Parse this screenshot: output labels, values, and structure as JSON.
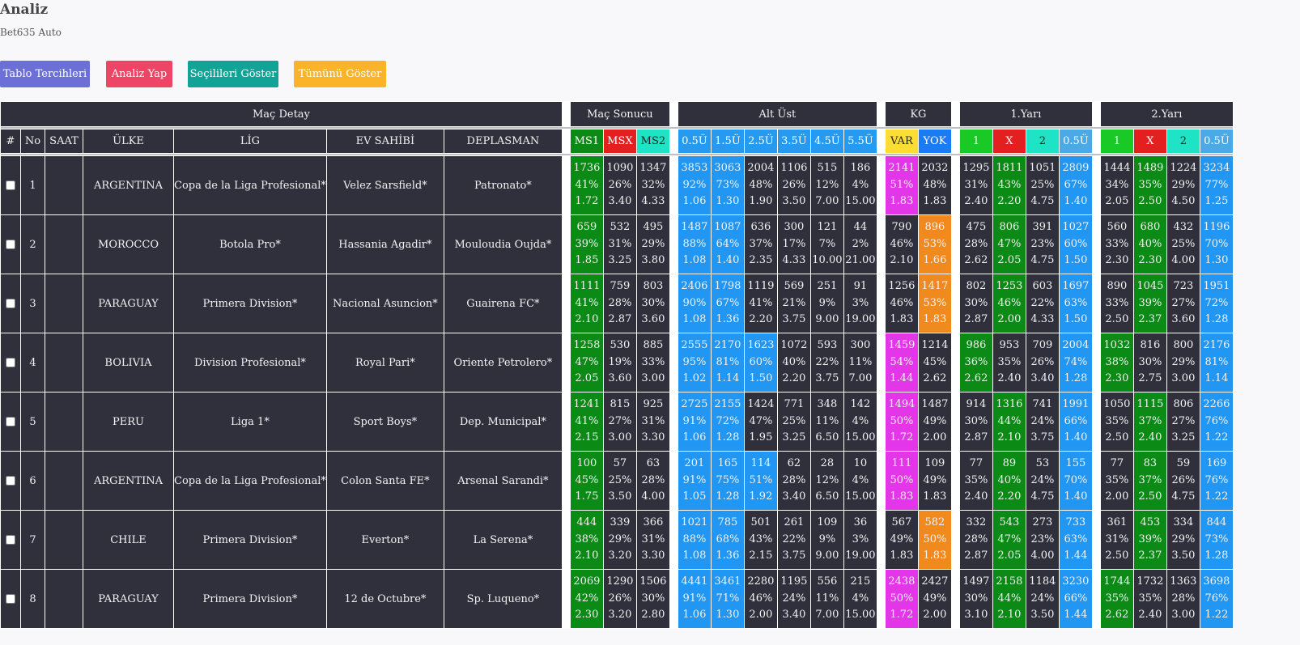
{
  "page": {
    "title": "Analiz",
    "subtitle": "Bet635 Auto"
  },
  "buttons": [
    {
      "label": "Tablo Tercihleri",
      "color": "#6c6fd6"
    },
    {
      "label": "Analiz Yap",
      "color": "#ee4466"
    },
    {
      "label": "Seçilileri Göster",
      "color": "#10a396"
    },
    {
      "label": "Tümünü Göster",
      "color": "#fbb42a"
    }
  ],
  "groups": {
    "detail": "Maç Detay",
    "result": "Maç Sonucu",
    "ou": "Alt Üst",
    "kg": "KG",
    "h1": "1.Yarı",
    "h2": "2.Yarı"
  },
  "detail_headers": [
    "#",
    "No",
    "SAAT",
    "ÜLKE",
    "LİG",
    "EV SAHİBİ",
    "DEPLASMAN"
  ],
  "stat_headers": {
    "result": [
      "MS1",
      "MSX",
      "MS2"
    ],
    "ou": [
      "0.5Ü",
      "1.5Ü",
      "2.5Ü",
      "3.5Ü",
      "4.5Ü",
      "5.5Ü"
    ],
    "kg": [
      "VAR",
      "YOK"
    ],
    "h1": [
      "1",
      "X",
      "2",
      "0.5Ü"
    ],
    "h2": [
      "1",
      "X",
      "2",
      "0.5Ü"
    ]
  },
  "colors": {
    "result": [
      "#0b8a16",
      "#e41f1f",
      "#1ee3c4"
    ],
    "ou": [
      "#259af0",
      "#259af0",
      "#259af0",
      "#259af0",
      "#259af0",
      "#259af0"
    ],
    "kg": [
      "#fbdd36",
      "#1a7cf5"
    ],
    "h1": [
      "#19c926",
      "#e41f1f",
      "#1ee3c4",
      "#4aaae8"
    ],
    "h2": [
      "#19c926",
      "#e41f1f",
      "#1ee3c4",
      "#4aaae8"
    ],
    "win": "#0b8a16",
    "ou_fill": "#2196f3",
    "kg_var": "#e236e8",
    "kg_yok": "#f0891e",
    "dark": "#30303d"
  },
  "rows": [
    {
      "no": "1",
      "time": "",
      "country": "ARGENTINA",
      "league": "Copa de la Liga Profesional*",
      "home": "Velez Sarsfield*",
      "away": "Patronato*",
      "result": [
        [
          "1736",
          "41%",
          "1.72"
        ],
        [
          "1090",
          "26%",
          "3.40"
        ],
        [
          "1347",
          "32%",
          "4.33"
        ]
      ],
      "ou": [
        [
          "3853",
          "92%",
          "1.06"
        ],
        [
          "3063",
          "73%",
          "1.30"
        ],
        [
          "2004",
          "48%",
          "1.90"
        ],
        [
          "1106",
          "26%",
          "3.50"
        ],
        [
          "515",
          "12%",
          "7.00"
        ],
        [
          "186",
          "4%",
          "15.00"
        ]
      ],
      "kg": [
        [
          "2141",
          "51%",
          "1.83"
        ],
        [
          "2032",
          "48%",
          "1.83"
        ]
      ],
      "h1": [
        [
          "1295",
          "31%",
          "2.40"
        ],
        [
          "1811",
          "43%",
          "2.20"
        ],
        [
          "1051",
          "25%",
          "4.75"
        ],
        [
          "2809",
          "67%",
          "1.40"
        ]
      ],
      "h2": [
        [
          "1444",
          "34%",
          "2.05"
        ],
        [
          "1489",
          "35%",
          "2.50"
        ],
        [
          "1224",
          "29%",
          "4.50"
        ],
        [
          "3234",
          "77%",
          "1.25"
        ]
      ],
      "hl": {
        "result": [
          0
        ],
        "ou": [
          0,
          1
        ],
        "kg": [
          0
        ],
        "h1": [
          1,
          3
        ],
        "h2": [
          1,
          3
        ]
      }
    },
    {
      "no": "2",
      "time": "",
      "country": "MOROCCO",
      "league": "Botola Pro*",
      "home": "Hassania Agadir*",
      "away": "Mouloudia Oujda*",
      "result": [
        [
          "659",
          "39%",
          "1.85"
        ],
        [
          "532",
          "31%",
          "3.25"
        ],
        [
          "495",
          "29%",
          "3.80"
        ]
      ],
      "ou": [
        [
          "1487",
          "88%",
          "1.08"
        ],
        [
          "1087",
          "64%",
          "1.40"
        ],
        [
          "636",
          "37%",
          "2.35"
        ],
        [
          "300",
          "17%",
          "4.33"
        ],
        [
          "121",
          "7%",
          "10.00"
        ],
        [
          "44",
          "2%",
          "21.00"
        ]
      ],
      "kg": [
        [
          "790",
          "46%",
          "2.10"
        ],
        [
          "896",
          "53%",
          "1.66"
        ]
      ],
      "h1": [
        [
          "475",
          "28%",
          "2.62"
        ],
        [
          "806",
          "47%",
          "2.05"
        ],
        [
          "391",
          "23%",
          "4.75"
        ],
        [
          "1027",
          "60%",
          "1.50"
        ]
      ],
      "h2": [
        [
          "560",
          "33%",
          "2.30"
        ],
        [
          "680",
          "40%",
          "2.30"
        ],
        [
          "432",
          "25%",
          "4.00"
        ],
        [
          "1196",
          "70%",
          "1.30"
        ]
      ],
      "hl": {
        "result": [
          0
        ],
        "ou": [
          0,
          1
        ],
        "kg": [
          1
        ],
        "h1": [
          1,
          3
        ],
        "h2": [
          1,
          3
        ]
      }
    },
    {
      "no": "3",
      "time": "",
      "country": "PARAGUAY",
      "league": "Primera Division*",
      "home": "Nacional Asuncion*",
      "away": "Guairena FC*",
      "result": [
        [
          "1111",
          "41%",
          "2.10"
        ],
        [
          "759",
          "28%",
          "2.87"
        ],
        [
          "803",
          "30%",
          "3.60"
        ]
      ],
      "ou": [
        [
          "2406",
          "90%",
          "1.08"
        ],
        [
          "1798",
          "67%",
          "1.36"
        ],
        [
          "1119",
          "41%",
          "2.20"
        ],
        [
          "569",
          "21%",
          "3.75"
        ],
        [
          "251",
          "9%",
          "9.00"
        ],
        [
          "91",
          "3%",
          "19.00"
        ]
      ],
      "kg": [
        [
          "1256",
          "46%",
          "1.83"
        ],
        [
          "1417",
          "53%",
          "1.83"
        ]
      ],
      "h1": [
        [
          "802",
          "30%",
          "2.87"
        ],
        [
          "1253",
          "46%",
          "2.00"
        ],
        [
          "603",
          "22%",
          "4.33"
        ],
        [
          "1697",
          "63%",
          "1.50"
        ]
      ],
      "h2": [
        [
          "890",
          "33%",
          "2.50"
        ],
        [
          "1045",
          "39%",
          "2.37"
        ],
        [
          "723",
          "27%",
          "3.60"
        ],
        [
          "1951",
          "72%",
          "1.28"
        ]
      ],
      "hl": {
        "result": [
          0
        ],
        "ou": [
          0,
          1
        ],
        "kg": [
          1
        ],
        "h1": [
          1,
          3
        ],
        "h2": [
          1,
          3
        ]
      }
    },
    {
      "no": "4",
      "time": "",
      "country": "BOLIVIA",
      "league": "Division Profesional*",
      "home": "Royal Pari*",
      "away": "Oriente Petrolero*",
      "result": [
        [
          "1258",
          "47%",
          "2.05"
        ],
        [
          "530",
          "19%",
          "3.60"
        ],
        [
          "885",
          "33%",
          "3.00"
        ]
      ],
      "ou": [
        [
          "2555",
          "95%",
          "1.02"
        ],
        [
          "2170",
          "81%",
          "1.14"
        ],
        [
          "1623",
          "60%",
          "1.50"
        ],
        [
          "1072",
          "40%",
          "2.20"
        ],
        [
          "593",
          "22%",
          "3.75"
        ],
        [
          "300",
          "11%",
          "7.00"
        ]
      ],
      "kg": [
        [
          "1459",
          "54%",
          "1.44"
        ],
        [
          "1214",
          "45%",
          "2.62"
        ]
      ],
      "h1": [
        [
          "986",
          "36%",
          "2.62"
        ],
        [
          "953",
          "35%",
          "2.40"
        ],
        [
          "709",
          "26%",
          "3.40"
        ],
        [
          "2004",
          "74%",
          "1.28"
        ]
      ],
      "h2": [
        [
          "1032",
          "38%",
          "2.30"
        ],
        [
          "816",
          "30%",
          "2.75"
        ],
        [
          "800",
          "29%",
          "3.00"
        ],
        [
          "2176",
          "81%",
          "1.14"
        ]
      ],
      "hl": {
        "result": [
          0
        ],
        "ou": [
          0,
          1,
          2
        ],
        "kg": [
          0
        ],
        "h1": [
          0,
          3
        ],
        "h2": [
          0,
          3
        ]
      }
    },
    {
      "no": "5",
      "time": "",
      "country": "PERU",
      "league": "Liga 1*",
      "home": "Sport Boys*",
      "away": "Dep. Municipal*",
      "result": [
        [
          "1241",
          "41%",
          "2.15"
        ],
        [
          "815",
          "27%",
          "3.00"
        ],
        [
          "925",
          "31%",
          "3.30"
        ]
      ],
      "ou": [
        [
          "2725",
          "91%",
          "1.06"
        ],
        [
          "2155",
          "72%",
          "1.28"
        ],
        [
          "1424",
          "47%",
          "1.95"
        ],
        [
          "771",
          "25%",
          "3.25"
        ],
        [
          "348",
          "11%",
          "6.50"
        ],
        [
          "142",
          "4%",
          "15.00"
        ]
      ],
      "kg": [
        [
          "1494",
          "50%",
          "1.72"
        ],
        [
          "1487",
          "49%",
          "2.00"
        ]
      ],
      "h1": [
        [
          "914",
          "30%",
          "2.87"
        ],
        [
          "1316",
          "44%",
          "2.10"
        ],
        [
          "741",
          "24%",
          "3.75"
        ],
        [
          "1991",
          "66%",
          "1.40"
        ]
      ],
      "h2": [
        [
          "1050",
          "35%",
          "2.50"
        ],
        [
          "1115",
          "37%",
          "2.40"
        ],
        [
          "806",
          "27%",
          "3.25"
        ],
        [
          "2266",
          "76%",
          "1.22"
        ]
      ],
      "hl": {
        "result": [
          0
        ],
        "ou": [
          0,
          1
        ],
        "kg": [
          0
        ],
        "h1": [
          1,
          3
        ],
        "h2": [
          1,
          3
        ]
      }
    },
    {
      "no": "6",
      "time": "",
      "country": "ARGENTINA",
      "league": "Copa de la Liga Profesional*",
      "home": "Colon Santa FE*",
      "away": "Arsenal Sarandi*",
      "result": [
        [
          "100",
          "45%",
          "1.75"
        ],
        [
          "57",
          "25%",
          "3.50"
        ],
        [
          "63",
          "28%",
          "4.00"
        ]
      ],
      "ou": [
        [
          "201",
          "91%",
          "1.05"
        ],
        [
          "165",
          "75%",
          "1.28"
        ],
        [
          "114",
          "51%",
          "1.92"
        ],
        [
          "62",
          "28%",
          "3.40"
        ],
        [
          "28",
          "12%",
          "6.50"
        ],
        [
          "10",
          "4%",
          "15.00"
        ]
      ],
      "kg": [
        [
          "111",
          "50%",
          "1.83"
        ],
        [
          "109",
          "49%",
          "1.83"
        ]
      ],
      "h1": [
        [
          "77",
          "35%",
          "2.40"
        ],
        [
          "89",
          "40%",
          "2.20"
        ],
        [
          "53",
          "24%",
          "4.75"
        ],
        [
          "155",
          "70%",
          "1.40"
        ]
      ],
      "h2": [
        [
          "77",
          "35%",
          "2.00"
        ],
        [
          "83",
          "37%",
          "2.50"
        ],
        [
          "59",
          "26%",
          "4.75"
        ],
        [
          "169",
          "76%",
          "1.22"
        ]
      ],
      "hl": {
        "result": [
          0
        ],
        "ou": [
          0,
          1,
          2
        ],
        "kg": [
          0
        ],
        "h1": [
          1,
          3
        ],
        "h2": [
          1,
          3
        ]
      }
    },
    {
      "no": "7",
      "time": "",
      "country": "CHILE",
      "league": "Primera Division*",
      "home": "Everton*",
      "away": "La Serena*",
      "result": [
        [
          "444",
          "38%",
          "2.10"
        ],
        [
          "339",
          "29%",
          "3.20"
        ],
        [
          "366",
          "31%",
          "3.30"
        ]
      ],
      "ou": [
        [
          "1021",
          "88%",
          "1.08"
        ],
        [
          "785",
          "68%",
          "1.36"
        ],
        [
          "501",
          "43%",
          "2.15"
        ],
        [
          "261",
          "22%",
          "3.75"
        ],
        [
          "109",
          "9%",
          "9.00"
        ],
        [
          "36",
          "3%",
          "19.00"
        ]
      ],
      "kg": [
        [
          "567",
          "49%",
          "1.83"
        ],
        [
          "582",
          "50%",
          "1.83"
        ]
      ],
      "h1": [
        [
          "332",
          "28%",
          "2.87"
        ],
        [
          "543",
          "47%",
          "2.05"
        ],
        [
          "273",
          "23%",
          "4.00"
        ],
        [
          "733",
          "63%",
          "1.44"
        ]
      ],
      "h2": [
        [
          "361",
          "31%",
          "2.50"
        ],
        [
          "453",
          "39%",
          "2.37"
        ],
        [
          "334",
          "29%",
          "3.50"
        ],
        [
          "844",
          "73%",
          "1.28"
        ]
      ],
      "hl": {
        "result": [
          0
        ],
        "ou": [
          0,
          1
        ],
        "kg": [
          1
        ],
        "h1": [
          1,
          3
        ],
        "h2": [
          1,
          3
        ]
      }
    },
    {
      "no": "8",
      "time": "",
      "country": "PARAGUAY",
      "league": "Primera Division*",
      "home": "12 de Octubre*",
      "away": "Sp. Luqueno*",
      "result": [
        [
          "2069",
          "42%",
          "2.30"
        ],
        [
          "1290",
          "26%",
          "3.20"
        ],
        [
          "1506",
          "30%",
          "2.80"
        ]
      ],
      "ou": [
        [
          "4441",
          "91%",
          "1.06"
        ],
        [
          "3461",
          "71%",
          "1.30"
        ],
        [
          "2280",
          "46%",
          "2.00"
        ],
        [
          "1195",
          "24%",
          "3.40"
        ],
        [
          "556",
          "11%",
          "7.00"
        ],
        [
          "215",
          "4%",
          "15.00"
        ]
      ],
      "kg": [
        [
          "2438",
          "50%",
          "1.72"
        ],
        [
          "2427",
          "49%",
          "2.00"
        ]
      ],
      "h1": [
        [
          "1497",
          "30%",
          "3.10"
        ],
        [
          "2158",
          "44%",
          "2.10"
        ],
        [
          "1184",
          "24%",
          "3.50"
        ],
        [
          "3230",
          "66%",
          "1.44"
        ]
      ],
      "h2": [
        [
          "1744",
          "35%",
          "2.62"
        ],
        [
          "1732",
          "35%",
          "2.40"
        ],
        [
          "1363",
          "28%",
          "3.00"
        ],
        [
          "3698",
          "76%",
          "1.22"
        ]
      ],
      "hl": {
        "result": [
          0
        ],
        "ou": [
          0,
          1
        ],
        "kg": [
          0
        ],
        "h1": [
          1,
          3
        ],
        "h2": [
          0,
          3
        ]
      }
    }
  ]
}
